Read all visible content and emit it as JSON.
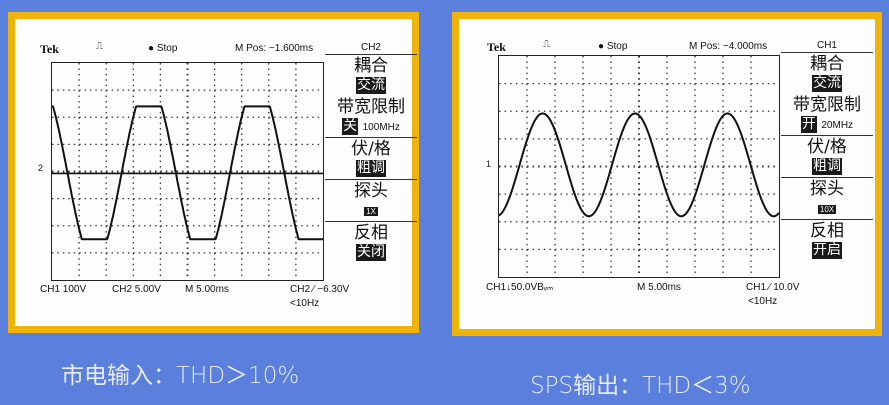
{
  "colors": {
    "background": "#5b7fdc",
    "frame": "#efb30a",
    "trace": "#111111"
  },
  "scopes": [
    {
      "brand": "Tek",
      "trigger_icon": "pulse-icon",
      "run_state": "Stop",
      "m_pos": "M Pos: −1.600ms",
      "channel": "CH2",
      "marker": "2",
      "menu": {
        "coupling_label": "耦合",
        "coupling_value": "交流",
        "bw_label": "带宽限制",
        "bw_state": "关",
        "bw_value": "100MHz",
        "vdiv_label": "伏/格",
        "vdiv_value": "粗调",
        "probe_label": "探头",
        "probe_value": "1X",
        "invert_label": "反相",
        "invert_value": "关闭"
      },
      "footer": {
        "ch1": "CH1  100V",
        "ch2": "CH2  5.00V",
        "timebase": "M 5.00ms",
        "trigger": "CH2 ∕ −6.30V",
        "freq": "<10Hz"
      }
    },
    {
      "brand": "Tek",
      "trigger_icon": "pulse-icon",
      "run_state": "Stop",
      "m_pos": "M Pos: −4.000ms",
      "channel": "CH1",
      "marker": "1",
      "menu": {
        "coupling_label": "耦合",
        "coupling_value": "交流",
        "bw_label": "带宽限制",
        "bw_state": "开",
        "bw_value": "20MHz",
        "vdiv_label": "伏/格",
        "vdiv_value": "粗调",
        "probe_label": "探头",
        "probe_value": "10X",
        "invert_label": "反相",
        "invert_value": "开启"
      },
      "footer": {
        "ch1": "CH1↓50.0VBᵥₘ",
        "ch2": "",
        "timebase": "M 5.00ms",
        "trigger": "CH1 ∕ 10.0V",
        "freq": "<10Hz"
      }
    }
  ],
  "captions": {
    "left": "市电输入：THD＞10%",
    "right": "SPS输出：THD＜3%"
  }
}
